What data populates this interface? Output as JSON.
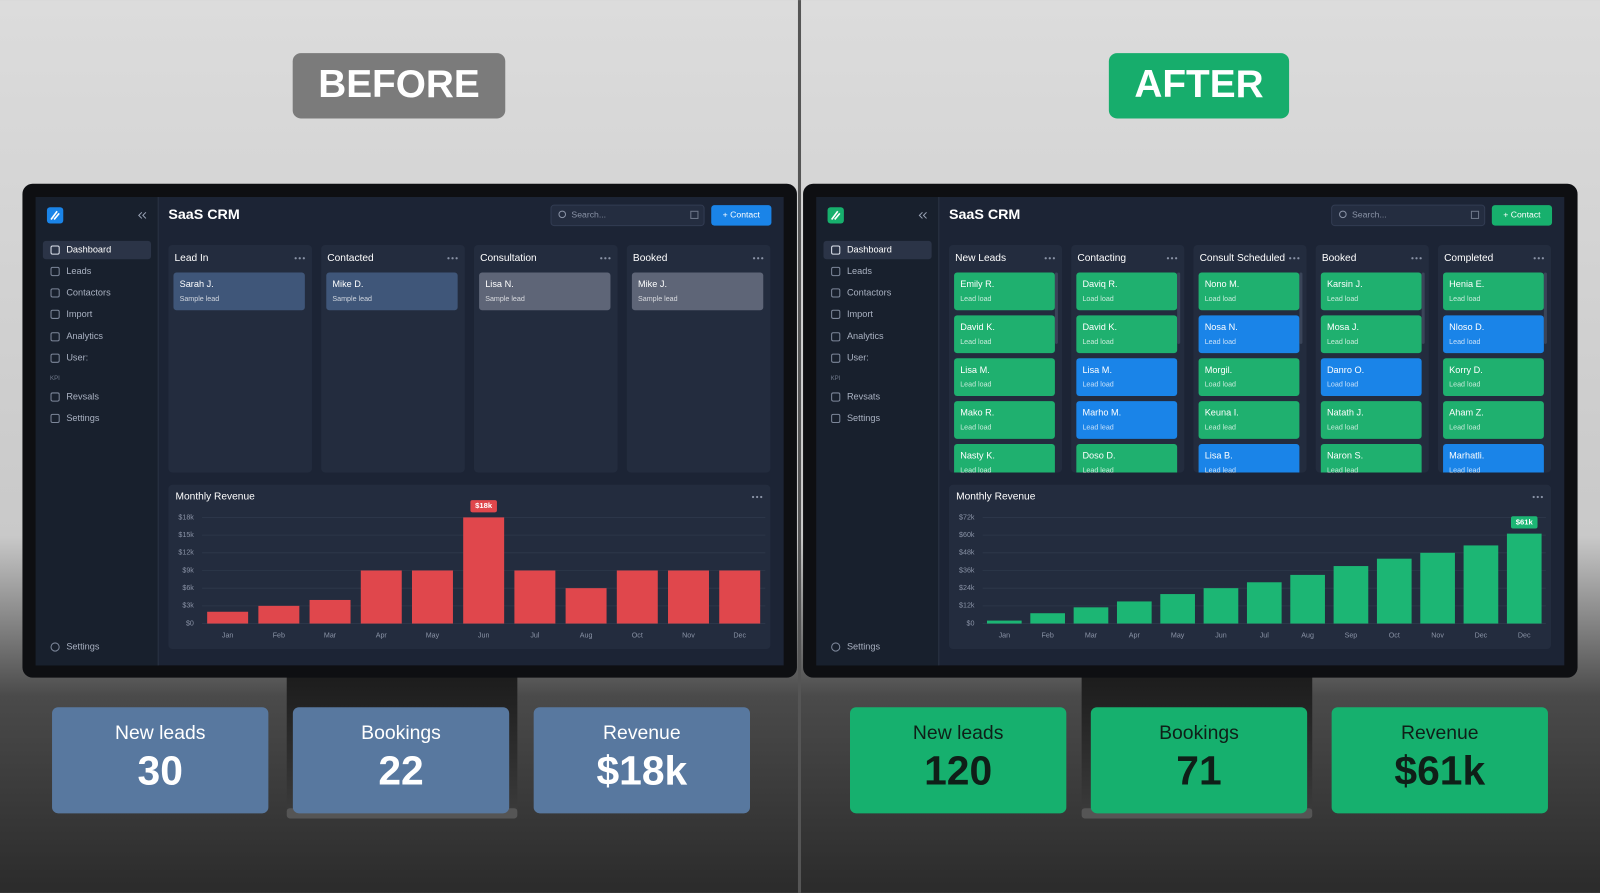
{
  "chart_data": [
    {
      "type": "bar",
      "title": "Monthly Revenue",
      "categories": [
        "Jan",
        "Feb",
        "Mar",
        "Apr",
        "May",
        "Jun",
        "Jul",
        "Aug",
        "Oct",
        "Nov",
        "Dec"
      ],
      "values": [
        2,
        3,
        4,
        9,
        9,
        18,
        9,
        6,
        9,
        9,
        9
      ],
      "value_labels": [
        null,
        null,
        null,
        null,
        null,
        "$18k",
        null,
        null,
        null,
        null,
        null
      ],
      "color": "#e0474c",
      "ylim": [
        0,
        18
      ],
      "yticks": [
        {
          "value": 0,
          "label": "$0"
        },
        {
          "value": 3,
          "label": "$3k"
        },
        {
          "value": 6,
          "label": "$6k"
        },
        {
          "value": 9,
          "label": "$9k"
        },
        {
          "value": 12,
          "label": "$12k"
        },
        {
          "value": 15,
          "label": "$15k"
        },
        {
          "value": 18,
          "label": "$18k"
        }
      ],
      "grid": true
    },
    {
      "type": "bar",
      "title": "Monthly Revenue",
      "categories": [
        "Jan",
        "Feb",
        "Mar",
        "Apr",
        "May",
        "Jun",
        "Jul",
        "Aug",
        "Sep",
        "Oct",
        "Nov",
        "Dec",
        "Dec"
      ],
      "values": [
        2,
        7,
        11,
        15,
        20,
        24,
        28,
        33,
        39,
        44,
        48,
        53,
        61
      ],
      "value_labels": [
        null,
        null,
        null,
        null,
        null,
        null,
        null,
        null,
        null,
        null,
        null,
        null,
        "$61k"
      ],
      "color": "#1cb674",
      "ylim": [
        0,
        72
      ],
      "yticks": [
        {
          "value": 0,
          "label": "$0"
        },
        {
          "value": 12,
          "label": "$12k"
        },
        {
          "value": 24,
          "label": "$24k"
        },
        {
          "value": 36,
          "label": "$36k"
        },
        {
          "value": 48,
          "label": "$48k"
        },
        {
          "value": 60,
          "label": "$60k"
        },
        {
          "value": 72,
          "label": "$72k"
        }
      ],
      "grid": true
    }
  ],
  "panels": [
    {
      "badge": "BEFORE",
      "badge_color": "#7b7b7b",
      "accent": "#1a84e8",
      "app": {
        "title": "SaaS CRM",
        "search": "Search...",
        "button": "+ Contact",
        "nav": [
          "Dashboard",
          "Leads",
          "Contactors",
          "Import",
          "Analytics",
          "User:"
        ],
        "section": "KPI",
        "nav2": [
          "Revsals",
          "Settings"
        ],
        "footer": "Settings",
        "columns": [
          {
            "title": "Lead In",
            "cards": [
              {
                "name": "Sarah J.",
                "sub": "Sample lead",
                "color": "#3f5679"
              }
            ]
          },
          {
            "title": "Contacted",
            "cards": [
              {
                "name": "Mike D.",
                "sub": "Sample lead",
                "color": "#3f5679"
              }
            ]
          },
          {
            "title": "Consultation",
            "cards": [
              {
                "name": "Lisa N.",
                "sub": "Sample lead",
                "color": "#5e6577"
              }
            ]
          },
          {
            "title": "Booked",
            "cards": [
              {
                "name": "Mike J.",
                "sub": "Sample lead",
                "color": "#5e6577"
              }
            ]
          }
        ]
      },
      "kpi_color": "#58789f",
      "kpi_text_color": "#ffffff",
      "kpis": [
        {
          "label": "New leads",
          "value": 30
        },
        {
          "label": "Bookings",
          "value": 22
        },
        {
          "label": "Revenue",
          "value": "$18k"
        }
      ]
    },
    {
      "badge": "AFTER",
      "badge_color": "#17ad6c",
      "accent": "#17b06d",
      "app": {
        "title": "SaaS CRM",
        "search": "Search...",
        "button": "+ Contact",
        "nav": [
          "Dashboard",
          "Leads",
          "Contactors",
          "Import",
          "Analytics",
          "User:"
        ],
        "section": "KPI",
        "nav2": [
          "Revsats",
          "Settings"
        ],
        "footer": "Settings",
        "columns": [
          {
            "title": "New Leads",
            "cards": [
              {
                "name": "Emily R.",
                "sub": "Lead load",
                "color": "#1fb06f"
              },
              {
                "name": "David K.",
                "sub": "Lead load",
                "color": "#1fb06f"
              },
              {
                "name": "Lisa M.",
                "sub": "Lead load",
                "color": "#1fb06f"
              },
              {
                "name": "Mako R.",
                "sub": "Lead load",
                "color": "#1fb06f"
              },
              {
                "name": "Nasty K.",
                "sub": "Lead load",
                "color": "#1fb06f"
              }
            ]
          },
          {
            "title": "Contacting",
            "cards": [
              {
                "name": "Daviq R.",
                "sub": "Load load",
                "color": "#1fb06f"
              },
              {
                "name": "David K.",
                "sub": "Lead load",
                "color": "#1fb06f"
              },
              {
                "name": "Lisa M.",
                "sub": "Lead load",
                "color": "#1a84e8"
              },
              {
                "name": "Marho M.",
                "sub": "Lead lead",
                "color": "#1a84e8"
              },
              {
                "name": "Doso D.",
                "sub": "Lead lead",
                "color": "#1fb06f"
              }
            ]
          },
          {
            "title": "Consult Scheduled",
            "cards": [
              {
                "name": "Nono M.",
                "sub": "Load load",
                "color": "#1fb06f"
              },
              {
                "name": "Nosa N.",
                "sub": "Lead load",
                "color": "#1a84e8"
              },
              {
                "name": "Morgil.",
                "sub": "Load load",
                "color": "#1fb06f"
              },
              {
                "name": "Keuna I.",
                "sub": "Lead lead",
                "color": "#1fb06f"
              },
              {
                "name": "Lisa B.",
                "sub": "Lead lead",
                "color": "#1a84e8"
              }
            ]
          },
          {
            "title": "Booked",
            "cards": [
              {
                "name": "Karsin J.",
                "sub": "Lead load",
                "color": "#1fb06f"
              },
              {
                "name": "Mosa J.",
                "sub": "Lead load",
                "color": "#1fb06f"
              },
              {
                "name": "Danro O.",
                "sub": "Load load",
                "color": "#1a84e8"
              },
              {
                "name": "Natath J.",
                "sub": "Lead load",
                "color": "#1fb06f"
              },
              {
                "name": "Naron S.",
                "sub": "Lead lead",
                "color": "#1fb06f"
              }
            ]
          },
          {
            "title": "Completed",
            "cards": [
              {
                "name": "Henia E.",
                "sub": "Lead load",
                "color": "#1fb06f"
              },
              {
                "name": "Nloso D.",
                "sub": "Lead load",
                "color": "#1a84e8"
              },
              {
                "name": "Korry D.",
                "sub": "Lead load",
                "color": "#1fb06f"
              },
              {
                "name": "Aham Z.",
                "sub": "Lead load",
                "color": "#1fb06f"
              },
              {
                "name": "Marhatli.",
                "sub": "Lead lead",
                "color": "#1a84e8"
              }
            ]
          }
        ]
      },
      "kpi_color": "#16b06e",
      "kpi_text_color": "#0f1f18",
      "kpis": [
        {
          "label": "New leads",
          "value": 120
        },
        {
          "label": "Bookings",
          "value": 71
        },
        {
          "label": "Revenue",
          "value": "$61k"
        }
      ]
    }
  ]
}
